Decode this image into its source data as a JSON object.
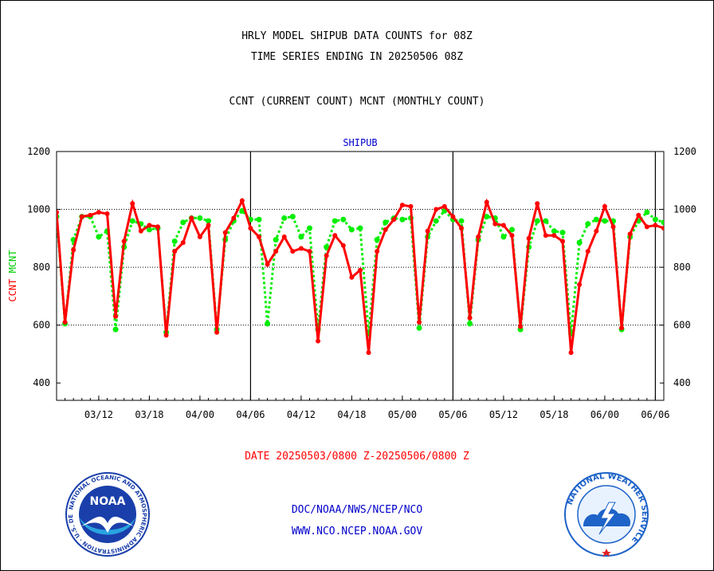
{
  "header": {
    "title_line1": "HRLY MODEL SHIPUB DATA COUNTS for 08Z",
    "title_line2": "TIME SERIES ENDING IN 20250506 08Z",
    "title_line3": "CCNT (CURRENT COUNT) MCNT (MONTHLY COUNT)"
  },
  "chart_data": {
    "type": "line",
    "title": "SHIPUB",
    "ylabel_ccnt": "CCNT",
    "ylabel_mcnt": "MCNT",
    "ylim": [
      340,
      1200
    ],
    "yticks": [
      400,
      600,
      800,
      1000,
      1200
    ],
    "grid_values": [
      600,
      800,
      1000
    ],
    "xticks": [
      "03/12",
      "03/18",
      "04/00",
      "04/06",
      "04/12",
      "04/18",
      "05/00",
      "05/06",
      "05/12",
      "05/18",
      "06/00",
      "06/06"
    ],
    "x_start": "2025-05-03 07:00",
    "x_step_hours": 1,
    "day_boundaries": [
      "04/06",
      "05/06",
      "06/06"
    ],
    "series": [
      {
        "name": "CCNT",
        "color": "#ff0000",
        "values": [
          990,
          610,
          860,
          975,
          980,
          990,
          985,
          630,
          890,
          1020,
          925,
          945,
          940,
          565,
          855,
          885,
          970,
          905,
          945,
          575,
          920,
          970,
          1030,
          935,
          905,
          810,
          855,
          905,
          855,
          865,
          855,
          545,
          840,
          910,
          875,
          765,
          790,
          505,
          855,
          930,
          965,
          1015,
          1010,
          610,
          925,
          1000,
          1010,
          975,
          935,
          625,
          905,
          1025,
          950,
          945,
          910,
          595,
          900,
          1020,
          910,
          910,
          890,
          505,
          740,
          855,
          925,
          1010,
          940,
          590,
          915,
          980,
          940,
          945,
          935
        ]
      },
      {
        "name": "MCNT",
        "color": "#00ee00",
        "values": [
          975,
          605,
          895,
          975,
          975,
          905,
          925,
          585,
          870,
          960,
          950,
          930,
          935,
          575,
          890,
          955,
          970,
          970,
          960,
          585,
          895,
          960,
          995,
          965,
          965,
          605,
          895,
          970,
          975,
          905,
          935,
          585,
          870,
          960,
          965,
          930,
          935,
          570,
          895,
          955,
          970,
          965,
          970,
          590,
          905,
          960,
          995,
          965,
          960,
          605,
          895,
          975,
          970,
          905,
          930,
          585,
          870,
          960,
          960,
          925,
          920,
          570,
          885,
          950,
          965,
          960,
          960,
          585,
          905,
          960,
          990,
          965,
          955
        ]
      }
    ]
  },
  "footer": {
    "date_line": "DATE 20250503/0800 Z-20250506/0800 Z",
    "link1": "DOC/NOAA/NWS/NCEP/NCO",
    "link2": "WWW.NCO.NCEP.NOAA.GOV"
  },
  "logos": {
    "noaa_text": "NOAA",
    "noaa_ring": "NATIONAL OCEANIC AND ATMOSPHERIC ADMINISTRATION · U.S. DEPARTMENT OF COMMERCE ·",
    "nws_ring": "NATIONAL WEATHER SERVICE"
  },
  "colors": {
    "ccnt": "#ff0000",
    "mcnt": "#00ee00",
    "title": "#0000cc",
    "footer_links": "#0000cc",
    "date": "#ff0000",
    "noaa_blue": "#1a3faa",
    "nws_blue": "#1e63c8"
  }
}
